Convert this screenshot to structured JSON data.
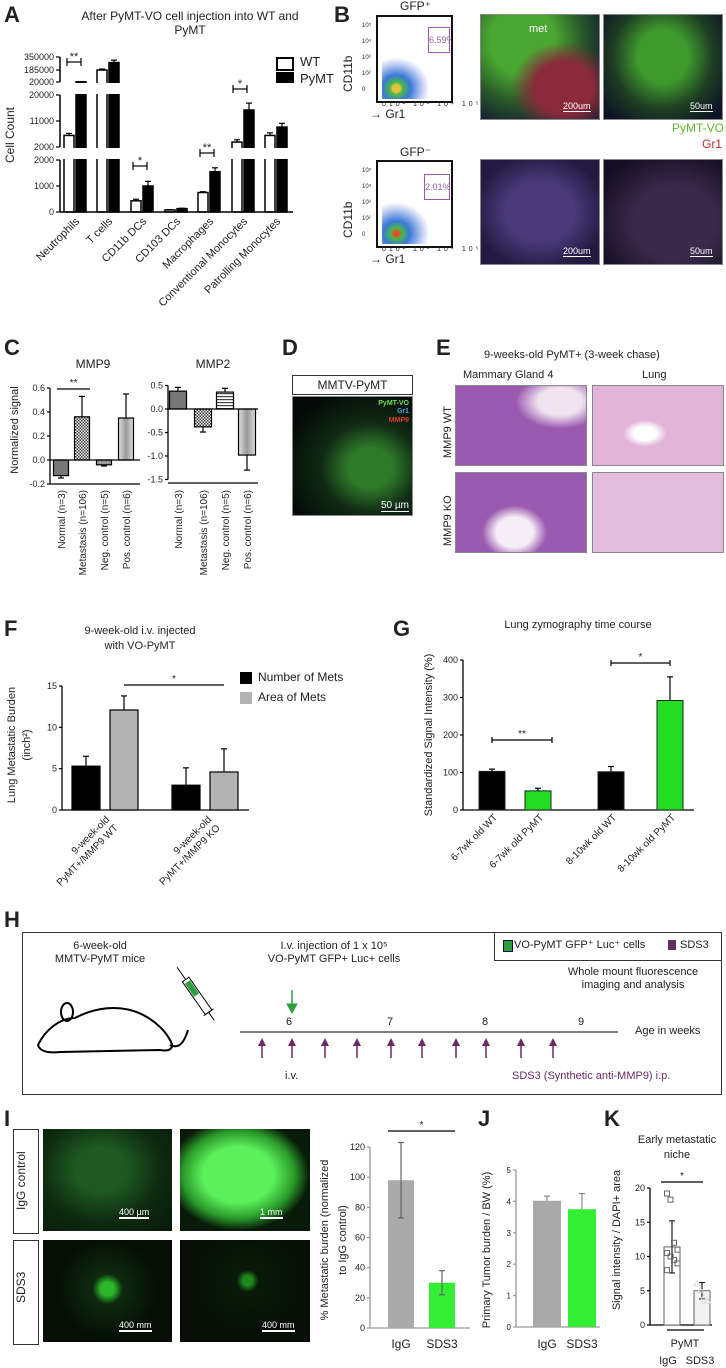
{
  "panel_labels": {
    "A": "A",
    "B": "B",
    "C": "C",
    "D": "D",
    "E": "E",
    "F": "F",
    "G": "G",
    "H": "H",
    "I": "I",
    "J": "J",
    "K": "K"
  },
  "B": {
    "gfp_pos": "GFP⁺",
    "gfp_neg": "GFP⁻",
    "ylabel": "CD11b",
    "xlabel": "Gr1",
    "gate_pos": "6.59%",
    "gate_neg": "2.01%",
    "flow_ticks_x": [
      "0",
      "10²",
      "10³",
      "10⁴",
      "10⁵"
    ],
    "flow_ticks_y": [
      "10⁵",
      "10⁴",
      "10³",
      "10²",
      "0"
    ],
    "met": "met",
    "scale_200": "200um",
    "scale_50": "50um",
    "legend_green": "PyMT-VO",
    "legend_red": "Gr1",
    "colors": {
      "green": "#5cb82e",
      "red": "#cc2a2a"
    }
  },
  "D": {
    "title": "MMTV-PyMT",
    "legend": [
      "PyMT-VO",
      "Gr1",
      "MMP9"
    ],
    "scale": "50 µm"
  },
  "E": {
    "title": "9-weeks-old PyMT+ (3-week chase)",
    "col1": "Mammary Gland 4",
    "col2": "Lung",
    "row1": "MMP9 WT",
    "row2": "MMP9 KO"
  },
  "H": {
    "mice_line1": "6-week-old",
    "mice_line2": "MMTV-PyMT mice",
    "injection_line1": "I.v. injection of 1 x 10⁵",
    "injection_line2": "VO-PyMT GFP+ Luc+ cells",
    "legend_cells": "VO-PyMT GFP⁺ Luc⁺ cells",
    "legend_sds3": "SDS3",
    "imaging_line1": "Whole mount fluorescence",
    "imaging_line2": "imaging and analysis",
    "weeks": [
      "6",
      "7",
      "8",
      "9"
    ],
    "age_label": "Age in weeks",
    "iv": "i.v.",
    "sds3_note": "SDS3 (Synthetic  anti-MMP9) i.p.",
    "colors": {
      "green": "#2e9e3e",
      "purple": "#6a2a66"
    }
  },
  "I": {
    "row1": "IgG control",
    "row2": "SDS3",
    "scales": [
      "400 µm",
      "1 mm",
      "400 mm",
      "400 mm"
    ]
  },
  "chart_data": [
    {
      "id": "A",
      "type": "bar",
      "title": "After PyMT-VO cell injection into WT and PyMT",
      "ylabel": "Cell Count",
      "categories": [
        "Neutrophils",
        "T cells",
        "CD11b DCs",
        "CD103 DCs",
        "Macrophages",
        "Conventional Monocytes",
        "Patrolling Monocytes"
      ],
      "ytick_labels": [
        "0",
        "1000",
        "2000",
        "2000",
        "11000",
        "20000",
        "20000",
        "185000",
        "350000"
      ],
      "y_axis": "broken: 0–2000, 2000–20000, 20000–350000",
      "series": [
        {
          "name": "WT",
          "color": "#ffffff",
          "values": [
            6000,
            185000,
            430,
            80,
            750,
            3700,
            6000
          ],
          "errors": [
            700,
            12000,
            60,
            10,
            30,
            800,
            900
          ]
        },
        {
          "name": "PyMT",
          "color": "#000000",
          "values": [
            22000,
            280000,
            1000,
            130,
            1550,
            14800,
            8900
          ],
          "errors": [
            500,
            30000,
            180,
            15,
            150,
            2400,
            1300
          ]
        }
      ],
      "legend": "top-right",
      "significance": [
        {
          "category": "Neutrophils",
          "label": "**"
        },
        {
          "category": "CD11b DCs",
          "label": "*"
        },
        {
          "category": "Macrophages",
          "label": "**"
        },
        {
          "category": "Conventional Monocytes",
          "label": "*"
        }
      ]
    },
    {
      "id": "C_MMP9",
      "type": "bar",
      "title": "MMP9",
      "ylabel": "Normalized signal",
      "ylim": [
        -0.2,
        0.6
      ],
      "yticks": [
        0.6,
        0.4,
        0.2,
        0.0,
        -0.2
      ],
      "ytick_labels": [
        "0.6",
        "0.4",
        "0.2",
        "0.0",
        "-0.2"
      ],
      "categories": [
        "Normal (n=3)",
        "Metastasis (n=106)",
        "Neg. control (n=5)",
        "Pos. control (n=6)"
      ],
      "series": [
        {
          "name": "MMP9",
          "values": [
            -0.13,
            0.36,
            -0.04,
            0.35
          ],
          "errors": [
            0.02,
            0.17,
            0.01,
            0.2
          ]
        }
      ],
      "significance": [
        {
          "between": [
            "Normal (n=3)",
            "Metastasis (n=106)"
          ],
          "label": "**"
        }
      ]
    },
    {
      "id": "C_MMP2",
      "type": "bar",
      "title": "MMP2",
      "ylabel": "",
      "ylim": [
        -1.5,
        0.5
      ],
      "yticks": [
        0.5,
        0.0,
        -0.5,
        -1.0,
        -1.5
      ],
      "ytick_labels": [
        "0.5",
        "0.0",
        "-0.5",
        "-1.0",
        "-1.5"
      ],
      "categories": [
        "Normal (n=3)",
        "Metastasis (n=106)",
        "Neg. control (n=5)",
        "Pos. control (n=6)"
      ],
      "series": [
        {
          "name": "MMP2",
          "values": [
            0.38,
            -0.38,
            0.36,
            -0.98
          ],
          "errors": [
            0.08,
            0.11,
            0.08,
            0.32
          ]
        }
      ],
      "significance": []
    },
    {
      "id": "F",
      "type": "bar",
      "title": "9-week-old i.v. injected\nwith VO-PyMT",
      "ylabel": "Lung Metastatic Burden",
      "ylabel_units": "(inch²)",
      "ylim": [
        0,
        15
      ],
      "yticks": [
        0,
        5,
        10,
        15
      ],
      "ytick_labels": [
        "0",
        "5",
        "10",
        "15"
      ],
      "categories": [
        "9-week-old\nPyMT+/MMP9 WT",
        "9-week-old\nPyMT+/MMP9 KO"
      ],
      "series": [
        {
          "name": "Number of Mets",
          "color": "#000000",
          "values": [
            5.3,
            3.0
          ],
          "errors": [
            1.2,
            2.1
          ]
        },
        {
          "name": "Area of Mets",
          "color": "#b3b3b3",
          "values": [
            12.1,
            4.6
          ],
          "errors": [
            1.7,
            2.8
          ]
        }
      ],
      "legend": "top-right",
      "significance": [
        {
          "between": [
            "Area of Mets WT",
            "Area of Mets KO"
          ],
          "label": "*"
        }
      ]
    },
    {
      "id": "G",
      "type": "bar",
      "title": "Lung zymography time course",
      "ylabel": "Standardized Signal Intensity (%)",
      "ylim": [
        0,
        400
      ],
      "yticks": [
        0,
        100,
        200,
        300,
        400
      ],
      "ytick_labels": [
        "0",
        "100",
        "200",
        "300",
        "400"
      ],
      "categories": [
        "6-7wk old WT",
        "6-7wk old PyMT",
        "8-10wk old WT",
        "8-10wk old PyMT"
      ],
      "series": [
        {
          "name": "Signal",
          "colors": [
            "#000000",
            "#22dd22",
            "#000000",
            "#22dd22"
          ],
          "values": [
            103,
            51,
            102,
            292
          ],
          "errors": [
            6,
            7,
            14,
            63
          ]
        }
      ],
      "significance": [
        {
          "between": [
            "6-7wk old WT",
            "6-7wk old PyMT"
          ],
          "label": "**"
        },
        {
          "between": [
            "8-10wk old WT",
            "8-10wk old PyMT"
          ],
          "label": "*"
        }
      ]
    },
    {
      "id": "I",
      "type": "bar",
      "ylabel": "% Metastatic burden (normalized",
      "ylabel2": "to IgG control)",
      "ylim": [
        0,
        120
      ],
      "yticks": [
        0,
        20,
        40,
        60,
        80,
        100,
        120
      ],
      "ytick_labels": [
        "0",
        "20",
        "40",
        "60",
        "80",
        "100",
        "120"
      ],
      "categories": [
        "IgG",
        "SDS3"
      ],
      "series": [
        {
          "name": "Burden",
          "colors": [
            "#aaaaaa",
            "#33ee33"
          ],
          "values": [
            98,
            30
          ],
          "errors": [
            25,
            8
          ]
        }
      ],
      "significance": [
        {
          "between": [
            "IgG",
            "SDS3"
          ],
          "label": "*"
        }
      ]
    },
    {
      "id": "J",
      "type": "bar",
      "ylabel": "Primary Tumor burden / BW (%)",
      "ylim": [
        0,
        5
      ],
      "yticks": [
        0,
        1,
        2,
        3,
        4,
        5
      ],
      "ytick_labels": [
        "0",
        "1",
        "2",
        "3",
        "4",
        "5"
      ],
      "categories": [
        "IgG",
        "SDS3"
      ],
      "series": [
        {
          "name": "Tumor burden",
          "colors": [
            "#aaaaaa",
            "#33ee33"
          ],
          "values": [
            4.02,
            3.75
          ],
          "errors": [
            0.15,
            0.5
          ]
        }
      ],
      "significance": []
    },
    {
      "id": "K",
      "type": "bar",
      "title": "Early metastatic\nniche",
      "ylabel": "Signal intensity / DAPI+ area",
      "ylim": [
        0,
        20
      ],
      "yticks": [
        0,
        5,
        10,
        15,
        20
      ],
      "ytick_labels": [
        "0",
        "5",
        "10",
        "15",
        "20"
      ],
      "categories": [
        "IgG",
        "SDS3"
      ],
      "group_label": "PyMT",
      "series": [
        {
          "name": "Signal",
          "colors": [
            "#ffffff",
            "#f2f2f2"
          ],
          "values": [
            11.4,
            5.0
          ],
          "errors": [
            3.8,
            1.2
          ],
          "points": [
            [
              19.2,
              18.3,
              12,
              11,
              10.5,
              10,
              9.5,
              9,
              8
            ],
            [
              6,
              5,
              4,
              3.5
            ]
          ]
        }
      ],
      "significance": [
        {
          "between": [
            "IgG",
            "SDS3"
          ],
          "label": "*"
        }
      ]
    }
  ]
}
